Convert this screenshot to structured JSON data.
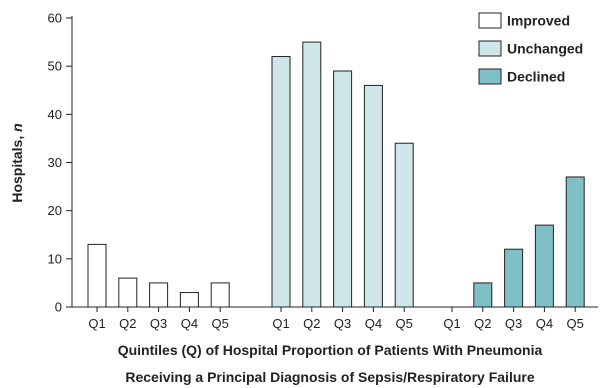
{
  "chart_data": {
    "type": "bar",
    "ylabel": "Hospitals, ",
    "ylabel_italic": "n",
    "xlabel_line1": "Quintiles (Q) of Hospital Proportion of Patients With Pneumonia",
    "xlabel_line2": "Receiving a Principal Diagnosis of Sepsis/Respiratory Failure",
    "ylim": [
      0,
      60
    ],
    "yticks": [
      0,
      10,
      20,
      30,
      40,
      50,
      60
    ],
    "legend_position": "top-right",
    "grid": false,
    "groups": [
      {
        "name": "Improved",
        "color": "#ffffff",
        "categories": [
          "Q1",
          "Q2",
          "Q3",
          "Q4",
          "Q5"
        ],
        "values": [
          13,
          6,
          5,
          3,
          5
        ]
      },
      {
        "name": "Unchanged",
        "color": "#cde6e8",
        "categories": [
          "Q1",
          "Q2",
          "Q3",
          "Q4",
          "Q5"
        ],
        "values": [
          52,
          55,
          49,
          46,
          34
        ]
      },
      {
        "name": "Declined",
        "color": "#7fc0c6",
        "categories": [
          "Q1",
          "Q2",
          "Q3",
          "Q4",
          "Q5"
        ],
        "values": [
          0,
          5,
          12,
          17,
          27
        ]
      }
    ]
  }
}
